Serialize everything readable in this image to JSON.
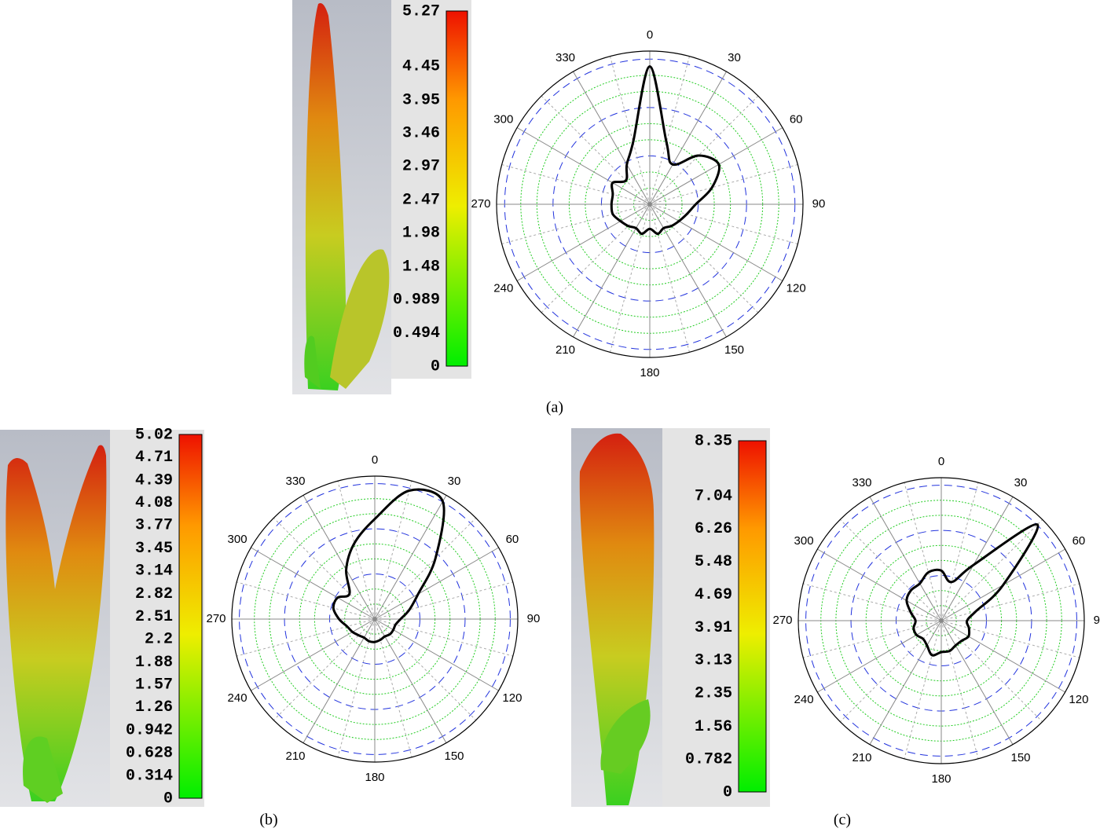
{
  "chart_data": [
    {
      "type": "polar",
      "caption": "(a)",
      "color": "#000000",
      "theta_ticks": [
        0,
        30,
        60,
        90,
        120,
        150,
        180,
        210,
        240,
        270,
        300,
        330
      ],
      "rlim": [
        0,
        1
      ],
      "theta": [
        0,
        15,
        30,
        45,
        60,
        75,
        90,
        105,
        120,
        135,
        150,
        165,
        180,
        195,
        210,
        225,
        240,
        255,
        270,
        285,
        300,
        315,
        330,
        345
      ],
      "r": [
        0.9,
        0.42,
        0.3,
        0.45,
        0.52,
        0.42,
        0.3,
        0.25,
        0.22,
        0.2,
        0.18,
        0.2,
        0.16,
        0.2,
        0.18,
        0.2,
        0.22,
        0.25,
        0.25,
        0.25,
        0.28,
        0.22,
        0.3,
        0.42
      ],
      "colorbar": {
        "lim": [
          0,
          5.27
        ],
        "ticks": [
          0,
          0.494,
          0.989,
          1.48,
          1.98,
          2.47,
          2.97,
          3.46,
          3.95,
          4.45,
          5.27
        ]
      }
    },
    {
      "type": "polar",
      "caption": "(b)",
      "color": "#000000",
      "theta_ticks": [
        0,
        30,
        60,
        90,
        120,
        150,
        180,
        210,
        240,
        270,
        300,
        330
      ],
      "rlim": [
        0,
        1
      ],
      "theta": [
        0,
        15,
        30,
        45,
        60,
        75,
        90,
        105,
        120,
        135,
        150,
        165,
        180,
        195,
        210,
        225,
        240,
        255,
        270,
        285,
        300,
        315,
        330,
        345
      ],
      "r": [
        0.7,
        0.93,
        0.95,
        0.6,
        0.35,
        0.25,
        0.18,
        0.15,
        0.15,
        0.15,
        0.14,
        0.15,
        0.16,
        0.16,
        0.15,
        0.16,
        0.18,
        0.2,
        0.25,
        0.3,
        0.3,
        0.25,
        0.4,
        0.55
      ],
      "colorbar": {
        "lim": [
          0,
          5.02
        ],
        "ticks": [
          0,
          0.314,
          0.628,
          0.942,
          1.26,
          1.57,
          1.88,
          2.2,
          2.51,
          2.82,
          3.14,
          3.45,
          3.77,
          4.08,
          4.39,
          4.71,
          5.02
        ]
      }
    },
    {
      "type": "polar",
      "caption": "(c)",
      "color": "#000000",
      "theta_ticks": [
        0,
        30,
        60,
        90,
        120,
        150,
        180,
        210,
        240,
        270,
        300,
        330
      ],
      "rlim": [
        0,
        1
      ],
      "theta": [
        0,
        15,
        30,
        45,
        60,
        75,
        90,
        105,
        120,
        135,
        150,
        165,
        180,
        195,
        210,
        225,
        240,
        255,
        270,
        285,
        300,
        315,
        330,
        345
      ],
      "r": [
        0.35,
        0.28,
        0.45,
        0.95,
        0.5,
        0.25,
        0.18,
        0.2,
        0.22,
        0.2,
        0.2,
        0.22,
        0.22,
        0.25,
        0.2,
        0.18,
        0.2,
        0.2,
        0.18,
        0.22,
        0.28,
        0.3,
        0.3,
        0.35
      ],
      "colorbar": {
        "lim": [
          0,
          8.35
        ],
        "ticks": [
          0,
          0.782,
          1.56,
          2.35,
          3.13,
          3.91,
          4.69,
          5.48,
          6.26,
          7.04,
          8.35
        ]
      }
    }
  ]
}
